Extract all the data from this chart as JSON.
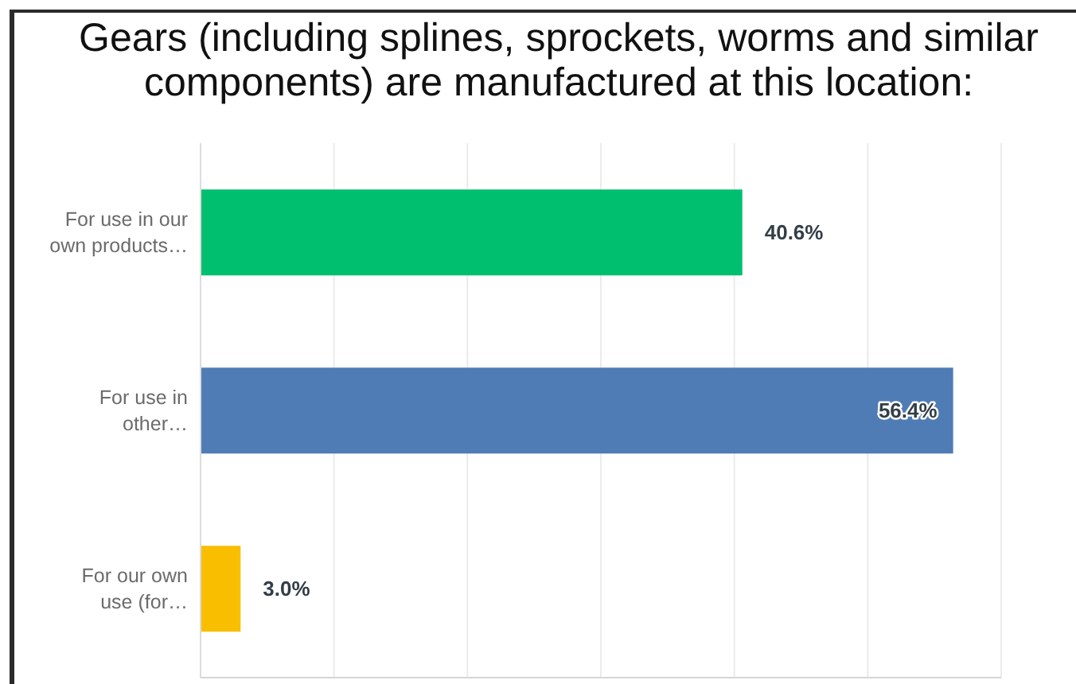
{
  "chart_data": {
    "type": "bar",
    "orientation": "horizontal",
    "title": "Gears (including splines, sprockets, worms and similar components) are manufactured at this location:",
    "categories": [
      "For use in our own products…",
      "For use in other…",
      "For our own use (for…"
    ],
    "values": [
      40.6,
      56.4,
      3.0
    ],
    "colors": [
      "#00bf6f",
      "#507cb6",
      "#f9be00"
    ],
    "value_labels": [
      "40.6%",
      "56.4%",
      "3.0%"
    ],
    "xlim": [
      0,
      60
    ],
    "xticks": [
      {
        "value": 0,
        "label": null
      },
      {
        "value": 10,
        "label": null
      },
      {
        "value": 20,
        "label": null
      },
      {
        "value": 30,
        "label": null
      },
      {
        "value": 40,
        "label": null
      },
      {
        "value": 50,
        "label": null
      },
      {
        "value": 60,
        "label": null
      }
    ],
    "grid": "x",
    "tick_labels": "y"
  }
}
